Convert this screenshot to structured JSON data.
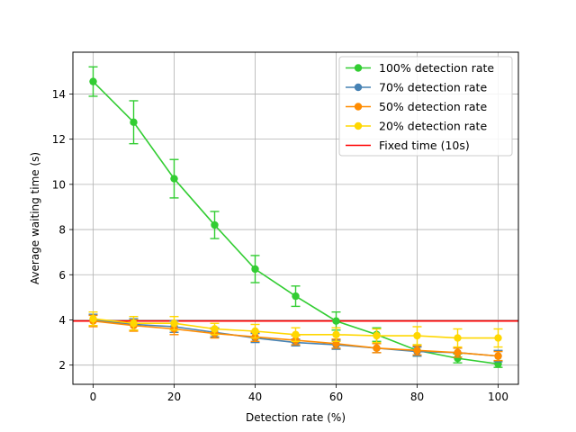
{
  "chart_data": {
    "type": "line",
    "title": "",
    "xlabel": "Detection rate (%)",
    "ylabel": "Average waiting time (s)",
    "xlim": [
      -5,
      105
    ],
    "ylim": [
      1.15,
      15.85
    ],
    "xticks": [
      0,
      20,
      40,
      60,
      80,
      100
    ],
    "yticks": [
      2,
      4,
      6,
      8,
      10,
      12,
      14
    ],
    "grid": true,
    "legend_position": "top-right",
    "x": [
      0,
      10,
      20,
      30,
      40,
      50,
      60,
      70,
      80,
      90,
      100
    ],
    "series": [
      {
        "name": "100% detection rate",
        "color": "#32cd32",
        "values": [
          14.55,
          12.75,
          10.25,
          8.2,
          6.25,
          5.05,
          3.95,
          3.35,
          2.65,
          2.3,
          2.05
        ],
        "errors": [
          0.65,
          0.95,
          0.85,
          0.6,
          0.6,
          0.45,
          0.4,
          0.3,
          0.25,
          0.2,
          0.15
        ]
      },
      {
        "name": "70% detection rate",
        "color": "#4682b4",
        "values": [
          4.0,
          3.8,
          3.7,
          3.45,
          3.2,
          3.0,
          2.9,
          2.75,
          2.6,
          2.55,
          2.4
        ],
        "errors": [
          0.25,
          0.25,
          0.25,
          0.2,
          0.2,
          0.15,
          0.2,
          0.2,
          0.2,
          0.2,
          0.25
        ]
      },
      {
        "name": "50% detection rate",
        "color": "#ff8c00",
        "values": [
          3.95,
          3.75,
          3.6,
          3.4,
          3.25,
          3.1,
          2.95,
          2.75,
          2.65,
          2.55,
          2.4
        ],
        "errors": [
          0.25,
          0.25,
          0.25,
          0.2,
          0.2,
          0.2,
          0.2,
          0.2,
          0.2,
          0.2,
          0.2
        ]
      },
      {
        "name": "20% detection rate",
        "color": "#ffd700",
        "values": [
          4.05,
          3.85,
          3.85,
          3.6,
          3.5,
          3.35,
          3.35,
          3.3,
          3.3,
          3.2,
          3.2
        ],
        "errors": [
          0.3,
          0.3,
          0.3,
          0.25,
          0.3,
          0.3,
          0.3,
          0.3,
          0.4,
          0.4,
          0.4
        ]
      }
    ],
    "reference_lines": [
      {
        "name": "Fixed time (10s)",
        "color": "#ff0000",
        "y": 3.95
      }
    ]
  }
}
